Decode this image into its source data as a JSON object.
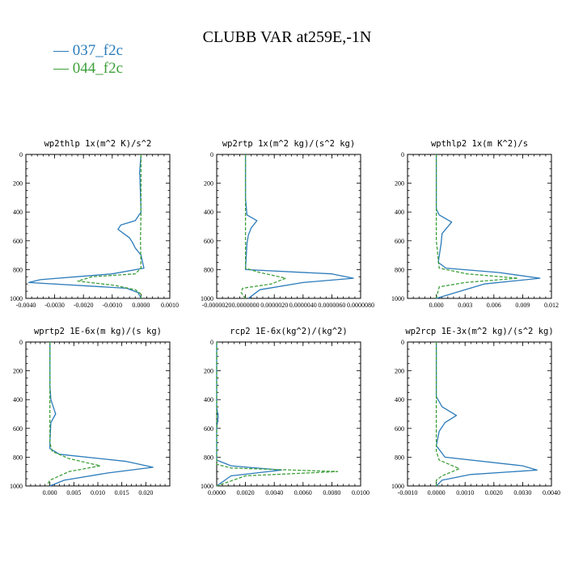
{
  "figure": {
    "title": "CLUBB VAR at259E,-1N"
  },
  "legend": [
    {
      "label": "— 037_f2c",
      "color": "#2b7bba"
    },
    {
      "label": "— 044_f2c",
      "color": "#3ea03a"
    }
  ],
  "series_styles": [
    {
      "name": "037_f2c",
      "color": "#2b7bba",
      "dash": "solid"
    },
    {
      "name": "044_f2c",
      "color": "#3ea03a",
      "dash": "dashed"
    }
  ],
  "chart_data": [
    {
      "type": "line",
      "title": "wp2thlp  1x(m^2 K)/s^2",
      "xlim": [
        -0.004,
        0.001
      ],
      "ylim": [
        1000,
        0
      ],
      "xticks": [
        -0.004,
        -0.003,
        -0.002,
        -0.001,
        0.0,
        0.001
      ],
      "xtick_labels": [
        "-0.0040",
        "-0.0030",
        "-0.0020",
        "-0.0010",
        "0.0000",
        "0.0010"
      ],
      "yticks": [
        0,
        200,
        400,
        600,
        800,
        1000
      ],
      "ytick_labels": [
        "0",
        "200",
        "400",
        "600",
        "800",
        "1000"
      ],
      "series": [
        {
          "name": "037_f2c",
          "x": [
            0.0,
            -5e-05,
            -4e-05,
            0.0,
            -0.0002,
            -0.0007,
            -0.0008,
            -0.0004,
            -0.0003,
            -0.0002,
            0.0,
            0.0001,
            -0.001,
            -0.0035,
            -0.0039,
            -0.0005,
            -0.0001,
            0.0
          ],
          "y": [
            0,
            130,
            150,
            400,
            460,
            490,
            520,
            580,
            610,
            650,
            700,
            790,
            830,
            870,
            890,
            930,
            960,
            1000
          ]
        },
        {
          "name": "044_f2c",
          "x": [
            0.0,
            0.0,
            0.0,
            -2e-05,
            0.0,
            -0.0002,
            -0.0017,
            -0.0022,
            -0.0009,
            -0.0002,
            0.0,
            0.0
          ],
          "y": [
            0,
            200,
            400,
            600,
            790,
            830,
            850,
            880,
            910,
            940,
            970,
            1000
          ]
        }
      ]
    },
    {
      "type": "line",
      "title": "wp2rtp  1x(m^2 kg)/(s^2 kg)",
      "xlim": [
        -2e-06,
        8e-06
      ],
      "ylim": [
        1000,
        0
      ],
      "xticks": [
        -2e-06,
        0.0,
        2e-06,
        4e-06,
        6e-06,
        8e-06
      ],
      "xtick_labels": [
        "-0.0000020",
        "0.0000000",
        "0.0000020",
        "0.0000040",
        "0.0000060",
        "0.0000080"
      ],
      "yticks": [
        0,
        200,
        400,
        600,
        800,
        1000
      ],
      "ytick_labels": [
        "0",
        "200",
        "400",
        "600",
        "800",
        "1000"
      ],
      "series": [
        {
          "name": "037_f2c",
          "x": [
            0.0,
            0.0,
            1e-07,
            8e-07,
            4e-07,
            2e-07,
            1e-07,
            0.0,
            6e-06,
            7.5e-06,
            4e-06,
            1e-06,
            2e-07
          ],
          "y": [
            0,
            300,
            420,
            460,
            510,
            560,
            620,
            800,
            830,
            860,
            890,
            940,
            1000
          ]
        },
        {
          "name": "044_f2c",
          "x": [
            0.0,
            0.0,
            0.0,
            0.0,
            1e-06,
            2.8e-06,
            1.8e-06,
            -2e-07,
            -3e-07,
            0.0
          ],
          "y": [
            0,
            300,
            600,
            790,
            820,
            860,
            900,
            930,
            960,
            1000
          ]
        }
      ]
    },
    {
      "type": "line",
      "title": "wpthlp2  1x(m K^2)/s",
      "xlim": [
        -0.003,
        0.012
      ],
      "ylim": [
        1000,
        0
      ],
      "xticks": [
        0.0,
        0.003,
        0.006,
        0.009,
        0.012
      ],
      "xtick_labels": [
        "0.000",
        "0.003",
        "0.006",
        "0.009",
        "0.012"
      ],
      "yticks": [
        0,
        200,
        400,
        600,
        800,
        1000
      ],
      "ytick_labels": [
        "0",
        "200",
        "400",
        "600",
        "800",
        "1000"
      ],
      "series": [
        {
          "name": "037_f2c",
          "x": [
            0.0,
            0.0,
            0.0,
            0.0003,
            0.0016,
            0.0006,
            0.0005,
            0.0002,
            0.001,
            0.0065,
            0.0108,
            0.005,
            0.0
          ],
          "y": [
            0,
            300,
            380,
            420,
            470,
            550,
            620,
            750,
            790,
            820,
            860,
            900,
            1000
          ]
        },
        {
          "name": "044_f2c",
          "x": [
            0.0,
            0.0,
            0.0,
            0.0003,
            0.0032,
            0.0085,
            0.003,
            0.0003,
            0.0
          ],
          "y": [
            0,
            300,
            600,
            790,
            830,
            860,
            890,
            920,
            1000
          ]
        }
      ]
    },
    {
      "type": "line",
      "title": "wprtp2  1E-6x(m kg)/(s kg)",
      "xlim": [
        -0.005,
        0.025
      ],
      "ylim": [
        1000,
        0
      ],
      "xticks": [
        0.0,
        0.005,
        0.01,
        0.015,
        0.02
      ],
      "xtick_labels": [
        "0.000",
        "0.005",
        "0.010",
        "0.015",
        "0.020"
      ],
      "yticks": [
        0,
        200,
        400,
        600,
        800,
        1000
      ],
      "ytick_labels": [
        "0",
        "200",
        "400",
        "600",
        "800",
        "1000"
      ],
      "series": [
        {
          "name": "037_f2c",
          "x": [
            0.0,
            0.0,
            0.0002,
            0.0012,
            0.0002,
            0.0,
            0.0,
            0.002,
            0.016,
            0.0215,
            0.012,
            0.003,
            0.0
          ],
          "y": [
            0,
            300,
            400,
            500,
            560,
            700,
            740,
            780,
            830,
            870,
            910,
            960,
            1000
          ]
        },
        {
          "name": "044_f2c",
          "x": [
            0.0,
            0.0,
            0.0,
            0.0005,
            0.004,
            0.0105,
            0.004,
            0.0,
            -0.0005
          ],
          "y": [
            0,
            300,
            700,
            760,
            810,
            860,
            900,
            960,
            990
          ]
        }
      ]
    },
    {
      "type": "line",
      "title": "rcp2  1E-6x(kg^2)/(kg^2)",
      "xlim": [
        0.0,
        0.01
      ],
      "ylim": [
        1000,
        0
      ],
      "xticks": [
        0.0,
        0.002,
        0.004,
        0.006,
        0.008,
        0.01
      ],
      "xtick_labels": [
        "0.0000",
        "0.0020",
        "0.0040",
        "0.0060",
        "0.0080",
        "0.0100"
      ],
      "yticks": [
        0,
        200,
        400,
        600,
        800,
        1000
      ],
      "ytick_labels": [
        "0",
        "200",
        "400",
        "600",
        "800",
        "1000"
      ],
      "series": [
        {
          "name": "037_f2c",
          "x": [
            0.0,
            0.0,
            0.0001,
            0.0,
            0.0,
            0.001,
            0.0045,
            0.001,
            0.0
          ],
          "y": [
            0,
            450,
            520,
            600,
            820,
            860,
            890,
            930,
            1000
          ]
        },
        {
          "name": "044_f2c",
          "x": [
            0.0,
            0.0,
            0.0,
            0.001,
            0.0084,
            0.002,
            0.0
          ],
          "y": [
            0,
            500,
            850,
            875,
            900,
            930,
            1000
          ]
        }
      ]
    },
    {
      "type": "line",
      "title": "wp2rcp  1E-3x(m^2 kg)/(s^2 kg)",
      "xlim": [
        -0.001,
        0.004
      ],
      "ylim": [
        1000,
        0
      ],
      "xticks": [
        -0.001,
        0.0,
        0.001,
        0.002,
        0.003,
        0.004
      ],
      "xtick_labels": [
        "-0.0010",
        "0.0000",
        "0.0010",
        "0.0020",
        "0.0030",
        "0.0040"
      ],
      "yticks": [
        0,
        200,
        400,
        600,
        800,
        1000
      ],
      "ytick_labels": [
        "0",
        "200",
        "400",
        "600",
        "800",
        "1000"
      ],
      "series": [
        {
          "name": "037_f2c",
          "x": [
            0.0,
            0.0,
            0.0002,
            0.0007,
            0.0003,
            0.0001,
            0.0,
            0.0003,
            0.003,
            0.0035,
            0.0012,
            0.0002,
            0.0
          ],
          "y": [
            0,
            380,
            450,
            510,
            560,
            620,
            720,
            800,
            860,
            890,
            920,
            960,
            1000
          ]
        },
        {
          "name": "044_f2c",
          "x": [
            0.0,
            0.0,
            0.0,
            0.0001,
            0.0008,
            0.0002,
            0.0,
            0.0
          ],
          "y": [
            0,
            400,
            760,
            820,
            880,
            930,
            960,
            1000
          ]
        }
      ]
    }
  ]
}
